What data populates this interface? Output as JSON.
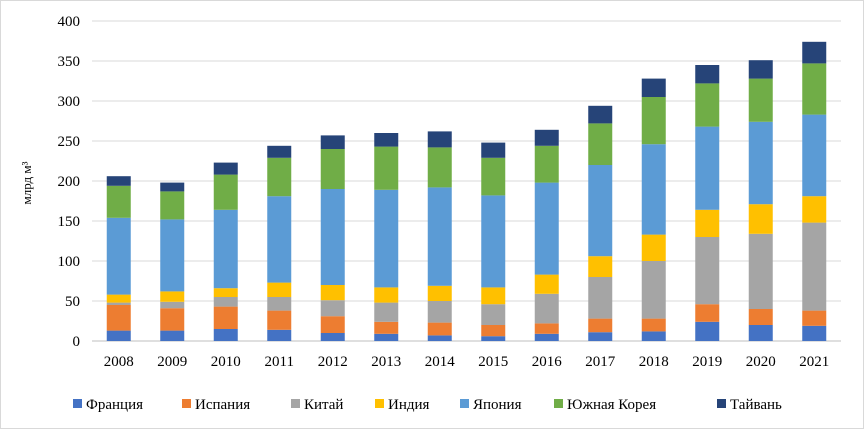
{
  "chart_data": {
    "type": "bar",
    "stacked": true,
    "ylabel": "млрд м³",
    "ylim": [
      0,
      400
    ],
    "yticks": [
      0,
      50,
      100,
      150,
      200,
      250,
      300,
      350,
      400
    ],
    "grid": true,
    "legend_position": "bottom",
    "categories": [
      "2008",
      "2009",
      "2010",
      "2011",
      "2012",
      "2013",
      "2014",
      "2015",
      "2016",
      "2017",
      "2018",
      "2019",
      "2020",
      "2021"
    ],
    "series": [
      {
        "name": "Франция",
        "color": "#4472c4",
        "values": [
          13,
          13,
          15,
          14,
          10,
          9,
          7,
          6,
          9,
          11,
          12,
          24,
          20,
          19
        ]
      },
      {
        "name": "Испания",
        "color": "#ed7d31",
        "values": [
          32,
          28,
          28,
          24,
          21,
          15,
          16,
          14,
          13,
          17,
          16,
          22,
          20,
          19
        ]
      },
      {
        "name": "Китай",
        "color": "#a5a5a5",
        "values": [
          3,
          8,
          12,
          17,
          20,
          24,
          27,
          26,
          37,
          52,
          72,
          84,
          94,
          110
        ]
      },
      {
        "name": "Индия",
        "color": "#ffc000",
        "values": [
          10,
          13,
          11,
          18,
          19,
          19,
          19,
          21,
          24,
          26,
          33,
          34,
          37,
          33
        ]
      },
      {
        "name": "Япония",
        "color": "#5b9bd5",
        "values": [
          96,
          90,
          98,
          108,
          120,
          122,
          123,
          115,
          115,
          114,
          113,
          104,
          103,
          102
        ]
      },
      {
        "name": "Южная Корея",
        "color": "#70ad47",
        "values": [
          40,
          35,
          44,
          48,
          50,
          54,
          50,
          47,
          46,
          52,
          59,
          54,
          54,
          64
        ]
      },
      {
        "name": "Тайвань",
        "color": "#264478",
        "values": [
          12,
          11,
          15,
          15,
          17,
          17,
          20,
          19,
          20,
          22,
          23,
          23,
          23,
          27
        ]
      }
    ]
  }
}
